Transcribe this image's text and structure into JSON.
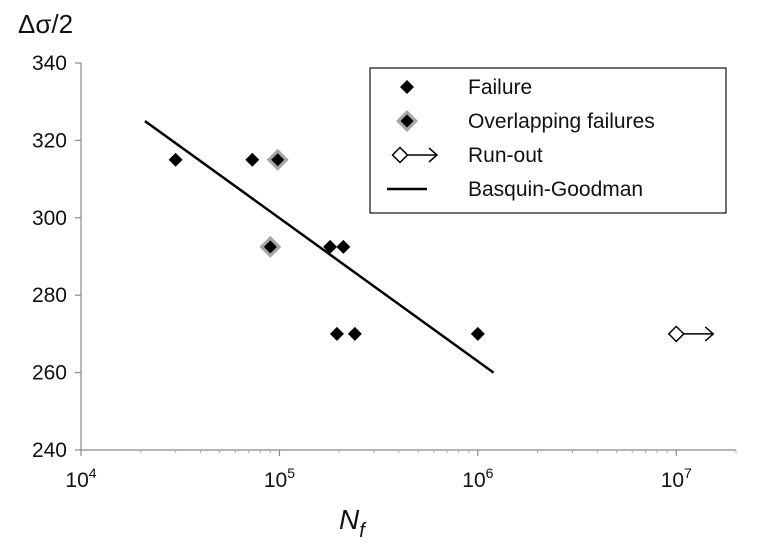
{
  "chart_data": {
    "type": "scatter",
    "x_scale": "log",
    "xlim": [
      10000,
      20000000
    ],
    "ylim": [
      240,
      340
    ],
    "y_ticks": [
      240,
      260,
      280,
      300,
      320,
      340
    ],
    "x_ticks": [
      {
        "value": 10000,
        "base": "10",
        "exp": "4"
      },
      {
        "value": 100000,
        "base": "10",
        "exp": "5"
      },
      {
        "value": 1000000,
        "base": "10",
        "exp": "6"
      },
      {
        "value": 10000000,
        "base": "10",
        "exp": "7"
      }
    ],
    "ylabel": "Δσ/2",
    "xlabel": {
      "main": "N",
      "sub": "f"
    },
    "grid": false,
    "legend_position": "top-right",
    "series": [
      {
        "name": "Failure",
        "marker": "diamond-filled",
        "color": "#000000",
        "points": [
          {
            "x": 30000,
            "y": 315
          },
          {
            "x": 73000,
            "y": 315
          },
          {
            "x": 180000,
            "y": 292.5
          },
          {
            "x": 210000,
            "y": 292.5
          },
          {
            "x": 195000,
            "y": 270
          },
          {
            "x": 240000,
            "y": 270
          },
          {
            "x": 1000000,
            "y": 270
          }
        ]
      },
      {
        "name": "Overlapping failures",
        "marker": "diamond-overlap",
        "color": "#000000",
        "outline_color": "#a6a6a6",
        "points": [
          {
            "x": 98000,
            "y": 315
          },
          {
            "x": 90000,
            "y": 292.5
          }
        ]
      },
      {
        "name": "Run-out",
        "marker": "diamond-open-arrow",
        "color": "#000000",
        "points": [
          {
            "x": 10000000,
            "y": 270
          }
        ]
      },
      {
        "name": "Basquin-Goodman",
        "type": "line",
        "color": "#000000",
        "points": [
          {
            "x": 21000,
            "y": 325
          },
          {
            "x": 1200000,
            "y": 260
          }
        ]
      }
    ]
  }
}
